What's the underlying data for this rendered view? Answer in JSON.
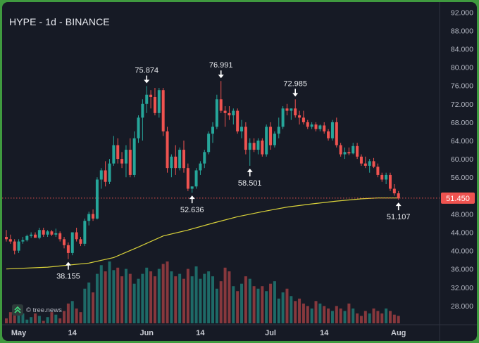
{
  "header": {
    "title": "HYPE - 1d - BINANCE"
  },
  "watermark": {
    "text": "© tree.news",
    "logo_icon": "treenews-logo-icon"
  },
  "colors": {
    "background": "#161a25",
    "up": "#26a69a",
    "down": "#ef5350",
    "ma_line": "#d9d23a",
    "price_line": "#ef5350",
    "annotation": "#ffffff"
  },
  "chart_data": {
    "type": "candlestick",
    "ylim": [
      26.0,
      92.5
    ],
    "y_ticks": [
      "92.000",
      "88.000",
      "84.000",
      "80.000",
      "76.000",
      "72.000",
      "68.000",
      "64.000",
      "60.000",
      "56.000",
      "52.000",
      "48.000",
      "44.000",
      "40.000",
      "36.000",
      "32.000",
      "28.000"
    ],
    "x_ticks": [
      {
        "label": "May",
        "index": 3
      },
      {
        "label": "14",
        "index": 16
      },
      {
        "label": "Jun",
        "index": 34
      },
      {
        "label": "14",
        "index": 47
      },
      {
        "label": "Jul",
        "index": 64
      },
      {
        "label": "14",
        "index": 77
      },
      {
        "label": "Aug",
        "index": 95
      }
    ],
    "last_price": 51.45,
    "last_price_label": "51.450",
    "candles": [
      [
        43.0,
        44.5,
        42.0,
        42.5
      ],
      [
        42.5,
        43.5,
        41.5,
        42.0
      ],
      [
        42.0,
        42.5,
        39.2,
        40.0
      ],
      [
        40.0,
        42.5,
        39.5,
        42.0
      ],
      [
        42.0,
        43.0,
        41.5,
        42.3
      ],
      [
        42.3,
        43.5,
        42.0,
        43.2
      ],
      [
        43.2,
        44.0,
        42.8,
        43.5
      ],
      [
        43.5,
        44.0,
        43.0,
        42.8
      ],
      [
        42.8,
        45.0,
        42.5,
        44.5
      ],
      [
        44.5,
        45.0,
        43.0,
        43.5
      ],
      [
        43.5,
        44.5,
        43.0,
        44.2
      ],
      [
        44.2,
        44.5,
        43.2,
        43.5
      ],
      [
        43.5,
        44.8,
        43.0,
        43.8
      ],
      [
        43.8,
        44.2,
        42.0,
        42.5
      ],
      [
        42.5,
        43.0,
        40.5,
        41.2
      ],
      [
        41.2,
        41.8,
        38.155,
        39.5
      ],
      [
        39.5,
        44.0,
        39.0,
        44.0
      ],
      [
        44.0,
        45.0,
        42.0,
        42.5
      ],
      [
        42.5,
        43.0,
        41.0,
        41.5
      ],
      [
        41.5,
        47.0,
        41.0,
        46.5
      ],
      [
        46.5,
        48.5,
        45.5,
        48.0
      ],
      [
        48.0,
        49.0,
        46.5,
        47.0
      ],
      [
        47.0,
        56.0,
        46.8,
        55.5
      ],
      [
        55.5,
        58.0,
        53.5,
        57.5
      ],
      [
        57.5,
        59.5,
        54.0,
        55.0
      ],
      [
        55.0,
        60.0,
        54.5,
        59.0
      ],
      [
        59.0,
        65.0,
        58.5,
        63.0
      ],
      [
        63.0,
        64.5,
        59.0,
        60.0
      ],
      [
        60.0,
        61.5,
        58.0,
        59.0
      ],
      [
        59.0,
        63.0,
        56.0,
        62.0
      ],
      [
        62.0,
        64.5,
        56.0,
        56.5
      ],
      [
        56.5,
        66.0,
        56.0,
        64.5
      ],
      [
        64.5,
        69.5,
        63.5,
        69.0
      ],
      [
        69.0,
        73.0,
        64.0,
        72.0
      ],
      [
        72.0,
        75.874,
        70.0,
        74.0
      ],
      [
        74.0,
        75.0,
        71.0,
        73.5
      ],
      [
        73.5,
        75.5,
        69.5,
        70.0
      ],
      [
        70.0,
        75.5,
        69.0,
        75.0
      ],
      [
        75.0,
        75.5,
        65.0,
        66.0
      ],
      [
        66.0,
        67.0,
        57.0,
        58.0
      ],
      [
        58.0,
        61.0,
        56.0,
        60.5
      ],
      [
        60.5,
        63.0,
        56.5,
        58.0
      ],
      [
        58.0,
        62.5,
        57.5,
        62.0
      ],
      [
        62.0,
        64.0,
        57.0,
        58.0
      ],
      [
        58.0,
        59.0,
        53.0,
        53.5
      ],
      [
        53.5,
        54.0,
        52.636,
        54.0
      ],
      [
        54.0,
        58.0,
        53.5,
        57.5
      ],
      [
        57.5,
        59.5,
        56.5,
        59.0
      ],
      [
        59.0,
        62.0,
        58.0,
        61.5
      ],
      [
        61.5,
        66.0,
        61.0,
        65.5
      ],
      [
        65.5,
        68.0,
        63.5,
        67.0
      ],
      [
        67.0,
        74.0,
        66.5,
        73.0
      ],
      [
        73.0,
        76.991,
        70.0,
        70.5
      ],
      [
        70.5,
        71.5,
        67.0,
        70.0
      ],
      [
        70.0,
        71.5,
        68.5,
        69.5
      ],
      [
        69.5,
        71.0,
        67.5,
        70.5
      ],
      [
        70.5,
        71.0,
        65.5,
        66.0
      ],
      [
        66.0,
        68.5,
        64.5,
        67.0
      ],
      [
        67.0,
        68.0,
        61.0,
        62.0
      ],
      [
        62.0,
        64.5,
        58.501,
        63.5
      ],
      [
        63.5,
        64.5,
        61.5,
        62.0
      ],
      [
        62.0,
        64.5,
        61.0,
        64.0
      ],
      [
        64.0,
        64.5,
        60.5,
        61.0
      ],
      [
        61.0,
        67.5,
        60.5,
        67.0
      ],
      [
        67.0,
        68.0,
        62.0,
        63.0
      ],
      [
        63.0,
        66.0,
        62.5,
        65.5
      ],
      [
        65.5,
        69.0,
        64.5,
        67.0
      ],
      [
        67.0,
        71.5,
        66.5,
        71.0
      ],
      [
        71.0,
        72.0,
        69.5,
        70.5
      ],
      [
        70.5,
        71.0,
        68.5,
        71.0
      ],
      [
        71.0,
        72.985,
        69.0,
        69.5
      ],
      [
        69.5,
        70.5,
        67.5,
        69.0
      ],
      [
        69.0,
        70.5,
        67.5,
        68.0
      ],
      [
        68.0,
        68.5,
        66.5,
        67.0
      ],
      [
        67.0,
        68.0,
        66.5,
        67.5
      ],
      [
        67.5,
        68.0,
        66.0,
        66.5
      ],
      [
        66.5,
        67.5,
        66.0,
        67.3
      ],
      [
        67.3,
        68.0,
        65.5,
        66.0
      ],
      [
        66.0,
        66.5,
        64.0,
        64.5
      ],
      [
        64.5,
        68.5,
        64.0,
        68.0
      ],
      [
        68.0,
        69.0,
        62.5,
        63.0
      ],
      [
        63.0,
        63.5,
        60.5,
        61.0
      ],
      [
        61.0,
        62.5,
        60.0,
        61.5
      ],
      [
        61.5,
        62.5,
        60.8,
        61.2
      ],
      [
        61.2,
        63.5,
        61.0,
        62.8
      ],
      [
        62.8,
        63.5,
        60.0,
        60.5
      ],
      [
        60.5,
        61.0,
        58.5,
        59.0
      ],
      [
        59.0,
        60.5,
        58.0,
        58.5
      ],
      [
        58.5,
        60.0,
        57.0,
        59.5
      ],
      [
        59.5,
        60.2,
        58.0,
        58.3
      ],
      [
        58.3,
        59.0,
        56.0,
        56.5
      ],
      [
        56.5,
        57.0,
        55.0,
        55.5
      ],
      [
        55.5,
        57.0,
        54.5,
        56.5
      ],
      [
        56.5,
        57.0,
        53.0,
        53.5
      ],
      [
        53.5,
        54.5,
        52.0,
        52.5
      ],
      [
        52.5,
        53.0,
        51.107,
        51.45
      ]
    ],
    "volumes": [
      4,
      9,
      7,
      10,
      8,
      3,
      5,
      8,
      6,
      2,
      5,
      9,
      7,
      4,
      10,
      16,
      18,
      12,
      9,
      28,
      33,
      25,
      40,
      47,
      42,
      50,
      43,
      45,
      38,
      44,
      40,
      32,
      36,
      40,
      45,
      42,
      38,
      44,
      48,
      50,
      42,
      38,
      40,
      36,
      44,
      38,
      46,
      36,
      40,
      42,
      38,
      28,
      34,
      45,
      42,
      30,
      26,
      32,
      38,
      36,
      30,
      28,
      30,
      26,
      32,
      34,
      20,
      25,
      28,
      22,
      18,
      20,
      16,
      14,
      12,
      18,
      16,
      14,
      12,
      10,
      14,
      12,
      10,
      16,
      12,
      8,
      6,
      10,
      8,
      12,
      10,
      8,
      12,
      10,
      7,
      6
    ],
    "ma": [
      [
        0,
        36.0
      ],
      [
        10,
        36.4
      ],
      [
        20,
        37.3
      ],
      [
        26,
        38.5
      ],
      [
        32,
        40.8
      ],
      [
        38,
        43.2
      ],
      [
        44,
        44.5
      ],
      [
        50,
        46.0
      ],
      [
        56,
        47.4
      ],
      [
        62,
        48.5
      ],
      [
        68,
        49.5
      ],
      [
        74,
        50.2
      ],
      [
        80,
        50.8
      ],
      [
        86,
        51.3
      ],
      [
        90,
        51.5
      ],
      [
        95,
        51.5
      ]
    ],
    "annotations": [
      {
        "label": "38.155",
        "index": 15,
        "price": 38.155,
        "pos": "below"
      },
      {
        "label": "75.874",
        "index": 34,
        "price": 75.874,
        "pos": "above"
      },
      {
        "label": "52.636",
        "index": 45,
        "price": 52.636,
        "pos": "below"
      },
      {
        "label": "76.991",
        "index": 52,
        "price": 76.991,
        "pos": "above"
      },
      {
        "label": "58.501",
        "index": 59,
        "price": 58.501,
        "pos": "below"
      },
      {
        "label": "72.985",
        "index": 70,
        "price": 72.985,
        "pos": "above"
      },
      {
        "label": "51.107",
        "index": 95,
        "price": 51.107,
        "pos": "below"
      }
    ]
  }
}
